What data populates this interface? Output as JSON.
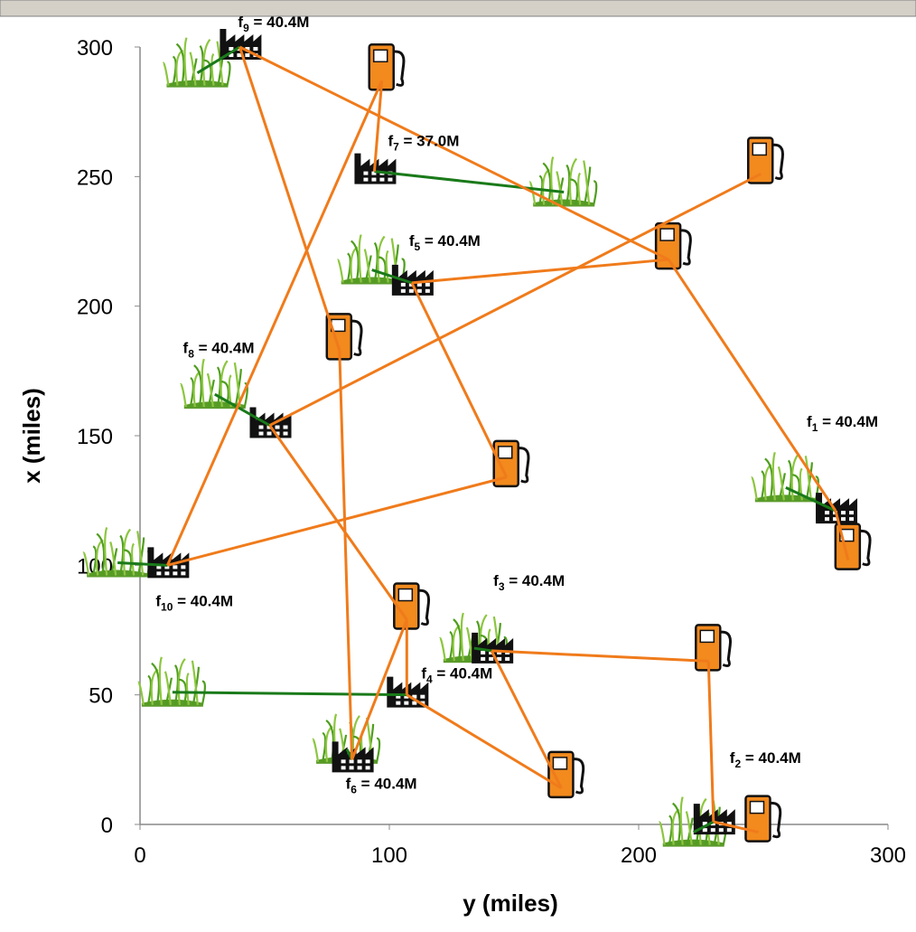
{
  "chart_data": {
    "type": "scatter",
    "x_label": "y (miles)",
    "y_label": "x (miles)",
    "xlim": [
      0,
      300
    ],
    "xticks": [
      0,
      100,
      200,
      300
    ],
    "ylim": [
      0,
      300
    ],
    "yticks": [
      0,
      50,
      100,
      150,
      200,
      250,
      300
    ],
    "grid": false,
    "supply_color": "#1a7a1a",
    "delivery_color": "#f07b1b",
    "facilities": [
      {
        "x": 279,
        "y": 121,
        "label_parts": [
          "f",
          "1",
          " = 40.4M"
        ]
      },
      {
        "x": 230,
        "y": 1,
        "label_parts": [
          "f",
          "2",
          " = 40.4M"
        ]
      },
      {
        "x": 141,
        "y": 67,
        "label_parts": [
          "f",
          "3",
          " = 40.4M"
        ]
      },
      {
        "x": 107,
        "y": 50,
        "label_parts": [
          "f",
          "4",
          " = 40.4M"
        ]
      },
      {
        "x": 109,
        "y": 209,
        "label_parts": [
          "f",
          "5",
          " = 40.4M"
        ]
      },
      {
        "x": 85,
        "y": 25,
        "label_parts": [
          "f",
          "6",
          " = 40.4M"
        ]
      },
      {
        "x": 94,
        "y": 252,
        "label_parts": [
          "f",
          "7",
          " = 37.0M"
        ]
      },
      {
        "x": 52,
        "y": 154,
        "label_parts": [
          "f",
          "8",
          " = 40.4M"
        ]
      },
      {
        "x": 40,
        "y": 300,
        "label_parts": [
          "f",
          "9",
          " = 40.4M"
        ]
      },
      {
        "x": 11,
        "y": 100,
        "label_parts": [
          "f",
          "10",
          " = 40.4M"
        ]
      }
    ],
    "fields": [
      {
        "x": 23,
        "y": 290
      },
      {
        "x": 170,
        "y": 244
      },
      {
        "x": 93,
        "y": 214
      },
      {
        "x": 30,
        "y": 166
      },
      {
        "x": -9,
        "y": 101
      },
      {
        "x": 134,
        "y": 68
      },
      {
        "x": 13,
        "y": 51
      },
      {
        "x": 83,
        "y": 29
      },
      {
        "x": 222,
        "y": -3
      },
      {
        "x": 259,
        "y": 130
      }
    ],
    "stations": [
      {
        "x": 97,
        "y": 287
      },
      {
        "x": 249,
        "y": 251
      },
      {
        "x": 212,
        "y": 218
      },
      {
        "x": 80,
        "y": 183
      },
      {
        "x": 147,
        "y": 134
      },
      {
        "x": 284,
        "y": 102
      },
      {
        "x": 107,
        "y": 79
      },
      {
        "x": 228,
        "y": 63
      },
      {
        "x": 169,
        "y": 14
      },
      {
        "x": 248,
        "y": -3
      }
    ],
    "supply_links": [
      [
        0,
        8
      ],
      [
        1,
        6
      ],
      [
        2,
        4
      ],
      [
        3,
        7
      ],
      [
        4,
        9
      ],
      [
        5,
        2
      ],
      [
        6,
        3
      ],
      [
        7,
        5
      ],
      [
        8,
        1
      ],
      [
        9,
        0
      ]
    ],
    "delivery_links": [
      [
        8,
        2
      ],
      [
        0,
        2
      ],
      [
        0,
        5
      ],
      [
        8,
        3
      ],
      [
        5,
        3
      ],
      [
        6,
        0
      ],
      [
        9,
        0
      ],
      [
        4,
        2
      ],
      [
        4,
        4
      ],
      [
        7,
        1
      ],
      [
        7,
        6
      ],
      [
        9,
        4
      ],
      [
        2,
        7
      ],
      [
        1,
        7
      ],
      [
        2,
        8
      ],
      [
        3,
        6
      ],
      [
        3,
        8
      ],
      [
        5,
        6
      ],
      [
        1,
        9
      ]
    ]
  }
}
